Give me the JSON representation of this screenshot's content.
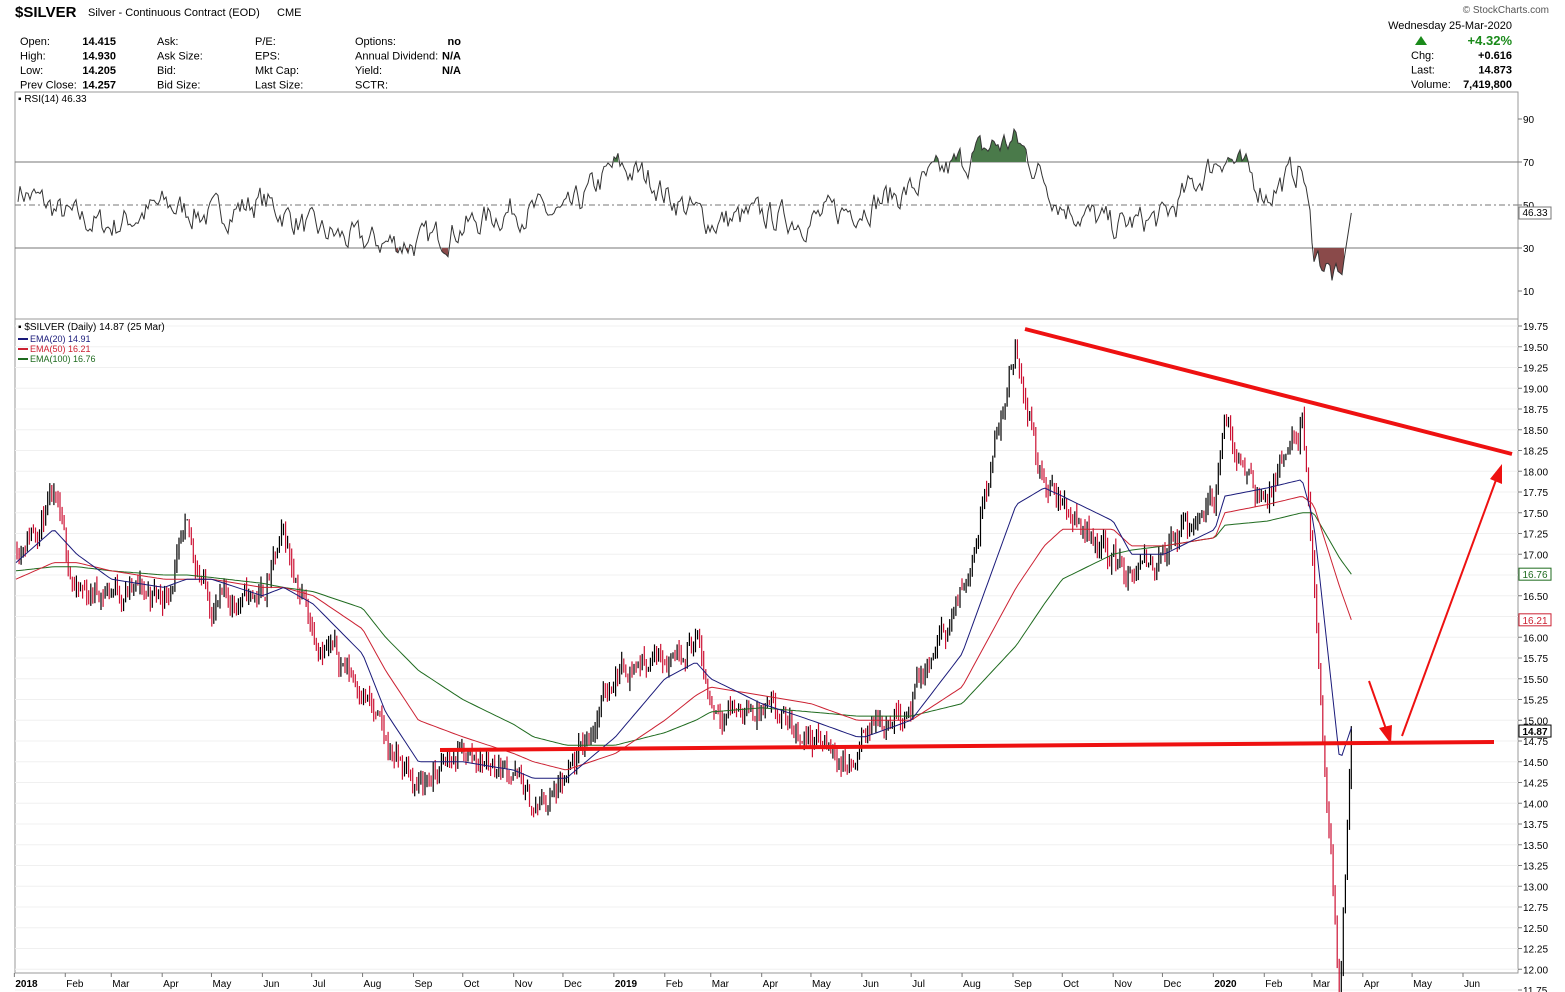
{
  "header": {
    "symbol": "$SILVER",
    "description": "Silver - Continuous Contract (EOD)",
    "exchange": "CME",
    "watermark": "© StockCharts.com",
    "date": "Wednesday  25-Mar-2020",
    "quote_left": [
      {
        "label": "Open:",
        "value": "14.415"
      },
      {
        "label": "High:",
        "value": "14.930"
      },
      {
        "label": "Low:",
        "value": "14.205"
      },
      {
        "label": "Prev Close:",
        "value": "14.257"
      }
    ],
    "quote_mid1": [
      {
        "label": "Ask:",
        "value": ""
      },
      {
        "label": "Ask Size:",
        "value": ""
      },
      {
        "label": "Bid:",
        "value": ""
      },
      {
        "label": "Bid Size:",
        "value": ""
      }
    ],
    "quote_mid2": [
      {
        "label": "P/E:",
        "value": ""
      },
      {
        "label": "EPS:",
        "value": ""
      },
      {
        "label": "Mkt Cap:",
        "value": ""
      },
      {
        "label": "Last Size:",
        "value": ""
      }
    ],
    "quote_mid3": [
      {
        "label": "Options:",
        "value": "no"
      },
      {
        "label": "Annual Dividend:",
        "value": "N/A"
      },
      {
        "label": "Yield:",
        "value": "N/A"
      },
      {
        "label": "SCTR:",
        "value": ""
      }
    ],
    "change_pct": "+4.32%",
    "quote_right": [
      {
        "label": "Chg:",
        "value": "+0.616"
      },
      {
        "label": "Last:",
        "value": "14.873"
      },
      {
        "label": "Volume:",
        "value": "7,419,800"
      }
    ]
  },
  "rsi_panel": {
    "legend": "RSI(14) 46.33",
    "current_value": "46.33",
    "y_ticks": [
      "90",
      "70",
      "50",
      "30",
      "10"
    ]
  },
  "price_panel": {
    "legend": "$SILVER (Daily) 14.87 (25 Mar)",
    "ema_legends": [
      {
        "label": "EMA(20) 14.91",
        "color": "#1a1a7a"
      },
      {
        "label": "EMA(50) 16.21",
        "color": "#cc2233"
      },
      {
        "label": "EMA(100) 16.76",
        "color": "#1f6b1f"
      }
    ],
    "y_ticks": [
      "19.75",
      "19.50",
      "19.25",
      "19.00",
      "18.75",
      "18.50",
      "18.25",
      "18.00",
      "17.75",
      "17.50",
      "17.25",
      "17.00",
      "16.75",
      "16.50",
      "16.25",
      "16.00",
      "15.75",
      "15.50",
      "15.25",
      "15.00",
      "14.75",
      "14.50",
      "14.25",
      "14.00",
      "13.75",
      "13.50",
      "13.25",
      "13.00",
      "12.75",
      "12.50",
      "12.25",
      "12.00",
      "11.75"
    ],
    "value_tags": [
      {
        "label": "16.76",
        "value": 16.76,
        "color": "#1f6b1f"
      },
      {
        "label": "16.21",
        "value": 16.21,
        "color": "#cc2233"
      },
      {
        "label": "14.87",
        "value": 14.87,
        "color": "#000000"
      }
    ]
  },
  "x_axis": {
    "labels": [
      "2018",
      "Feb",
      "Mar",
      "Apr",
      "May",
      "Jun",
      "Jul",
      "Aug",
      "Sep",
      "Oct",
      "Nov",
      "Dec",
      "2019",
      "Feb",
      "Mar",
      "Apr",
      "May",
      "Jun",
      "Jul",
      "Aug",
      "Sep",
      "Oct",
      "Nov",
      "Dec",
      "2020",
      "Feb",
      "Mar",
      "Apr",
      "May",
      "Jun"
    ],
    "bold": [
      "2018",
      "2019",
      "2020"
    ]
  },
  "colors": {
    "up": "#000000",
    "down": "#cc1133",
    "annotation": "#ee1111",
    "rsi_line": "#333333",
    "overbought_fill": "#4a7a4a",
    "oversold_fill": "#8a4a4a"
  },
  "chart_data": [
    {
      "type": "line",
      "title": "RSI(14)",
      "ylim": [
        0,
        100
      ],
      "reference_lines": [
        70,
        50,
        30
      ],
      "x": [
        "2018-01-02",
        "2018-02-01",
        "2018-03-01",
        "2018-04-02",
        "2018-05-01",
        "2018-06-01",
        "2018-07-02",
        "2018-08-01",
        "2018-09-04",
        "2018-10-01",
        "2018-11-01",
        "2018-12-03",
        "2019-01-02",
        "2019-01-25",
        "2019-02-01",
        "2019-03-01",
        "2019-04-01",
        "2019-05-01",
        "2019-06-03",
        "2019-07-01",
        "2019-08-01",
        "2019-08-21",
        "2019-09-03",
        "2019-10-01",
        "2019-11-01",
        "2019-12-02",
        "2020-01-02",
        "2020-01-08",
        "2020-02-03",
        "2020-02-24",
        "2020-03-02",
        "2020-03-18",
        "2020-03-25"
      ],
      "series": [
        {
          "values": [
            58,
            45,
            40,
            50,
            45,
            52,
            38,
            33,
            32,
            40,
            48,
            45,
            68,
            62,
            55,
            42,
            45,
            43,
            50,
            57,
            70,
            78,
            80,
            50,
            40,
            44,
            70,
            74,
            55,
            68,
            30,
            12,
            46.33
          ]
        }
      ]
    },
    {
      "type": "line",
      "title": "$SILVER (Daily) 14.87 (25 Mar)",
      "ylim": [
        11.6,
        19.95
      ],
      "x": [
        "2018-01-02",
        "2018-01-25",
        "2018-02-08",
        "2018-03-01",
        "2018-04-02",
        "2018-04-16",
        "2018-05-01",
        "2018-06-01",
        "2018-06-14",
        "2018-07-02",
        "2018-08-01",
        "2018-08-15",
        "2018-09-04",
        "2018-10-01",
        "2018-11-01",
        "2018-11-13",
        "2018-12-03",
        "2019-01-02",
        "2019-02-01",
        "2019-02-20",
        "2019-03-01",
        "2019-04-01",
        "2019-05-01",
        "2019-05-29",
        "2019-06-03",
        "2019-07-01",
        "2019-08-01",
        "2019-09-03",
        "2019-09-20",
        "2019-10-01",
        "2019-11-01",
        "2019-11-12",
        "2019-12-02",
        "2020-01-02",
        "2020-01-08",
        "2020-02-03",
        "2020-02-24",
        "2020-03-02",
        "2020-03-18",
        "2020-03-25"
      ],
      "series": [
        {
          "name": "$SILVER",
          "values": [
            17.1,
            17.6,
            16.5,
            16.6,
            16.5,
            17.2,
            16.4,
            16.5,
            17.2,
            16.1,
            15.4,
            14.7,
            14.2,
            14.6,
            14.4,
            13.9,
            14.2,
            15.6,
            15.8,
            16.0,
            15.2,
            15.1,
            14.8,
            14.4,
            14.9,
            15.2,
            16.5,
            19.5,
            17.8,
            17.6,
            17.0,
            16.7,
            17.0,
            17.7,
            18.5,
            17.6,
            18.6,
            16.6,
            11.7,
            14.87
          ]
        },
        {
          "name": "EMA(20)",
          "values": [
            16.9,
            17.3,
            17.0,
            16.7,
            16.6,
            16.7,
            16.7,
            16.5,
            16.6,
            16.4,
            15.8,
            15.1,
            14.5,
            14.5,
            14.4,
            14.3,
            14.3,
            14.8,
            15.5,
            15.7,
            15.5,
            15.2,
            15.0,
            14.8,
            14.8,
            15.0,
            15.8,
            17.6,
            17.8,
            17.7,
            17.4,
            17.0,
            17.0,
            17.3,
            17.7,
            17.8,
            17.9,
            17.4,
            14.5,
            14.91
          ]
        },
        {
          "name": "EMA(50)",
          "values": [
            16.7,
            16.9,
            16.9,
            16.8,
            16.7,
            16.7,
            16.7,
            16.6,
            16.6,
            16.5,
            16.1,
            15.6,
            15.0,
            14.8,
            14.6,
            14.5,
            14.4,
            14.6,
            15.0,
            15.3,
            15.4,
            15.3,
            15.2,
            15.0,
            15.0,
            15.0,
            15.4,
            16.6,
            17.1,
            17.3,
            17.3,
            17.1,
            17.1,
            17.2,
            17.5,
            17.6,
            17.7,
            17.6,
            16.6,
            16.21
          ]
        },
        {
          "name": "EMA(100)",
          "values": [
            16.8,
            16.85,
            16.85,
            16.8,
            16.75,
            16.75,
            16.72,
            16.65,
            16.6,
            16.55,
            16.35,
            16.0,
            15.6,
            15.25,
            14.95,
            14.8,
            14.7,
            14.7,
            14.85,
            15.0,
            15.1,
            15.15,
            15.1,
            15.05,
            15.05,
            15.05,
            15.2,
            15.9,
            16.4,
            16.7,
            17.0,
            17.05,
            17.1,
            17.2,
            17.35,
            17.4,
            17.5,
            17.5,
            16.95,
            16.76
          ]
        }
      ]
    }
  ]
}
